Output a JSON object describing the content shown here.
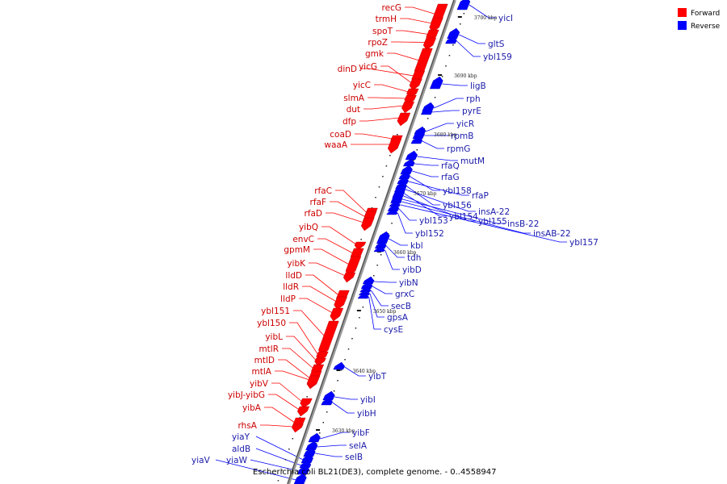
{
  "caption": "Escherichia coli BL21(DE3), complete genome. - 0..4558947",
  "legend": [
    {
      "label": "Forward",
      "color": "#ff0000"
    },
    {
      "label": "Reverse",
      "color": "#0000ff"
    }
  ],
  "colors": {
    "forward": "#ff0000",
    "forward_label": "#cc0000",
    "reverse": "#0000ff",
    "reverse_label": "#1a1aaa",
    "axis": "#777777"
  },
  "ticks": [
    "3700 kbp",
    "3690 kbp",
    "3680 kbp",
    "3670 kbp",
    "3660 kbp",
    "3650 kbp",
    "3640 kbp",
    "3630 kbp"
  ],
  "forward_genes": [
    "recG",
    "trmH",
    "spoT",
    "rpoZ",
    "gmk",
    "dinD",
    "yicG",
    "yicC",
    "slmA",
    "dut",
    "dfp",
    "coaD",
    "waaA",
    "rfaC",
    "rfaF",
    "rfaD",
    "yibQ",
    "envC",
    "gpmM",
    "yibK",
    "lldD",
    "lldR",
    "lldP",
    "ybl151",
    "ybl150",
    "yibL",
    "mtlR",
    "mtlD",
    "mtlA",
    "yibV",
    "yibJ-yibG",
    "yibA",
    "rhsA"
  ],
  "reverse_genes": [
    "yicI",
    "gltS",
    "ybl159",
    "ligB",
    "rph",
    "pyrE",
    "yicR",
    "rpmB",
    "rpmG",
    "mutM",
    "rfaQ",
    "rfaG",
    "ybl158",
    "rfaP",
    "ybl156",
    "insA-22",
    "ybl154",
    "ybl155",
    "insB-22",
    "insAB-22",
    "ybl157",
    "ybl153",
    "ybl152",
    "kbl",
    "tdh",
    "yibD",
    "yibN",
    "grxC",
    "secB",
    "gpsA",
    "cysE",
    "yibT",
    "yibI",
    "yibH",
    "yibF",
    "selA",
    "selB",
    "yiaY",
    "aldB",
    "yiaW",
    "yiaV"
  ]
}
